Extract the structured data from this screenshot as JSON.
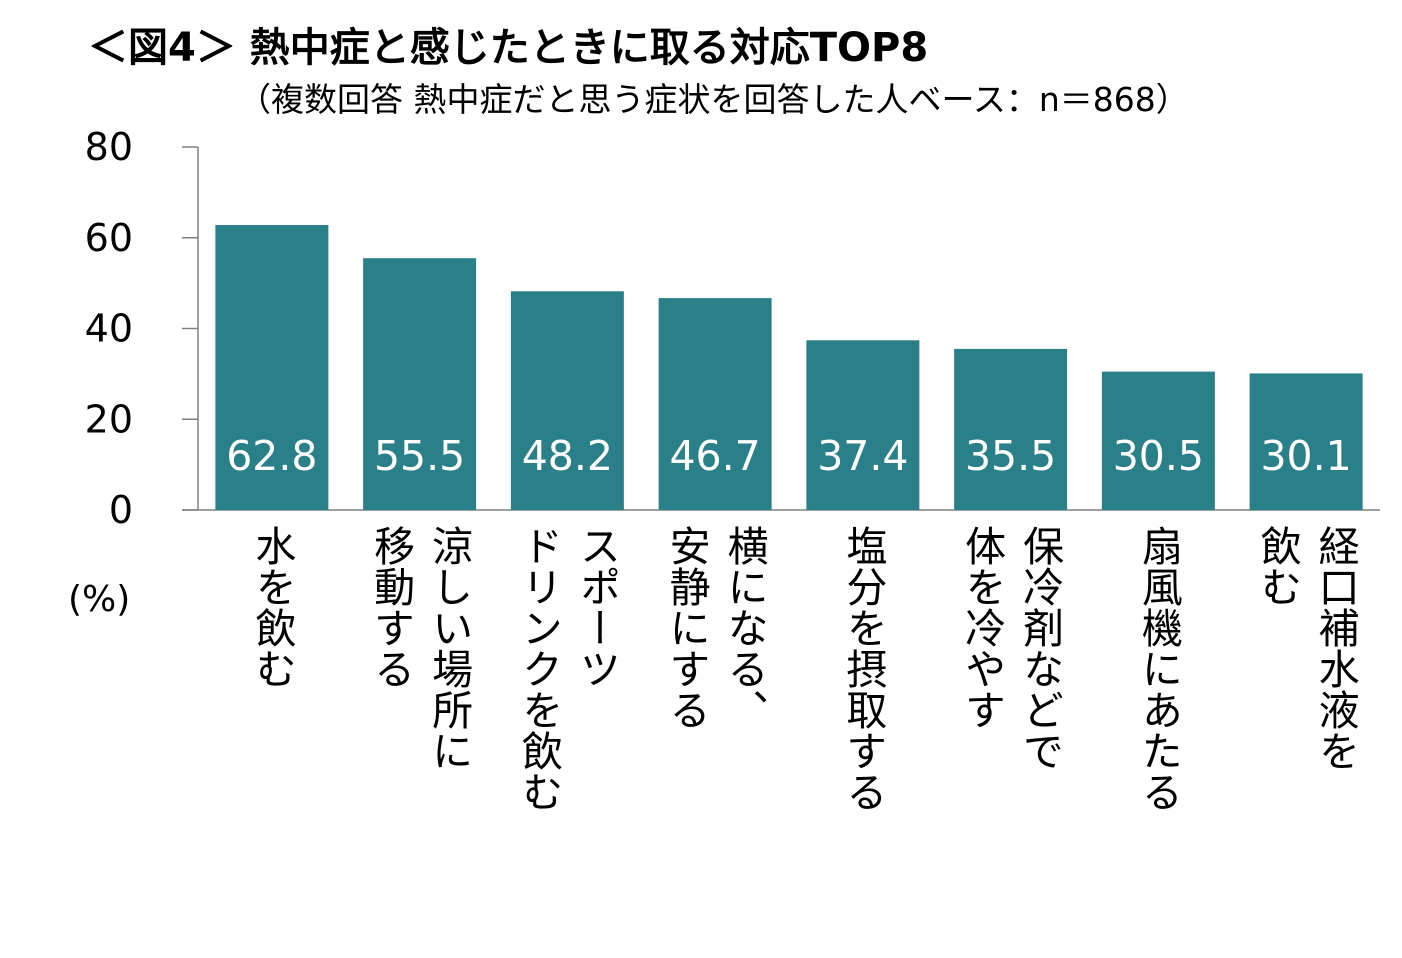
{
  "chart_data": {
    "type": "bar",
    "title": "＜図4＞ 熱中症と感じたときに取る対応TOP8",
    "subtitle": "（複数回答 熱中症だと思う症状を回答した人ベース：n＝868）",
    "ylabel": "(%)",
    "ylim": [
      0,
      80
    ],
    "yticks": [
      0,
      20,
      40,
      60,
      80
    ],
    "categories": [
      [
        "水を飲む"
      ],
      [
        "涼しい場所に",
        "移動する"
      ],
      [
        "スポーツ",
        "ドリンクを飲む"
      ],
      [
        "横になる、",
        "安静にする"
      ],
      [
        "塩分を摂取する"
      ],
      [
        "保冷剤などで",
        "体を冷やす"
      ],
      [
        "扇風機にあたる"
      ],
      [
        "経口補水液を",
        "飲む"
      ]
    ],
    "values": [
      62.8,
      55.5,
      48.2,
      46.7,
      37.4,
      35.5,
      30.5,
      30.1
    ],
    "value_labels": [
      "62.8",
      "55.5",
      "48.2",
      "46.7",
      "37.4",
      "35.5",
      "30.5",
      "30.1"
    ],
    "bar_color": "#2a8088",
    "label_color": "#ffffff",
    "axis_color": "#808080",
    "grid": false
  }
}
